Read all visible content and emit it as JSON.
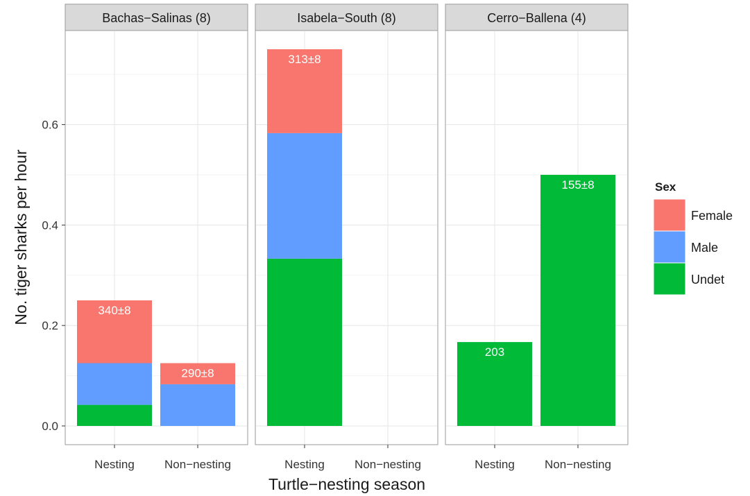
{
  "chart_data": {
    "type": "bar",
    "stacked": true,
    "faceted": true,
    "xlabel": "Turtle−nesting season",
    "ylabel": "No. tiger sharks per hour",
    "ylim": [
      0,
      0.75
    ],
    "yticks": [
      0.0,
      0.2,
      0.4,
      0.6
    ],
    "ytick_labels": [
      "0.0",
      "0.2",
      "0.4",
      "0.6"
    ],
    "categories": [
      "Nesting",
      "Non−nesting"
    ],
    "category_labels": [
      "Nesting",
      "Non−nesting"
    ],
    "grid": true,
    "legend": {
      "title": "Sex",
      "position": "right",
      "entries": [
        {
          "name": "Female",
          "color": "#F8766D"
        },
        {
          "name": "Male",
          "color": "#619CFF"
        },
        {
          "name": "Undet",
          "color": "#00BA38"
        }
      ]
    },
    "panels": [
      {
        "title": "Bachas−Salinas (8)",
        "bars": [
          {
            "category": "Nesting",
            "label": "340±8",
            "segments": {
              "Undet": 0.042,
              "Male": 0.083,
              "Female": 0.125
            }
          },
          {
            "category": "Non−nesting",
            "label": "290±8",
            "segments": {
              "Undet": 0,
              "Male": 0.083,
              "Female": 0.042
            }
          }
        ]
      },
      {
        "title": "Isabela−South (8)",
        "bars": [
          {
            "category": "Nesting",
            "label": "313±8",
            "segments": {
              "Undet": 0.333,
              "Male": 0.25,
              "Female": 0.167
            }
          }
        ]
      },
      {
        "title": "Cerro−Ballena (4)",
        "bars": [
          {
            "category": "Nesting",
            "label": "203",
            "segments": {
              "Undet": 0.167,
              "Male": 0,
              "Female": 0
            }
          },
          {
            "category": "Non−nesting",
            "label": "155±8",
            "segments": {
              "Undet": 0.5,
              "Male": 0,
              "Female": 0
            }
          }
        ]
      }
    ]
  }
}
